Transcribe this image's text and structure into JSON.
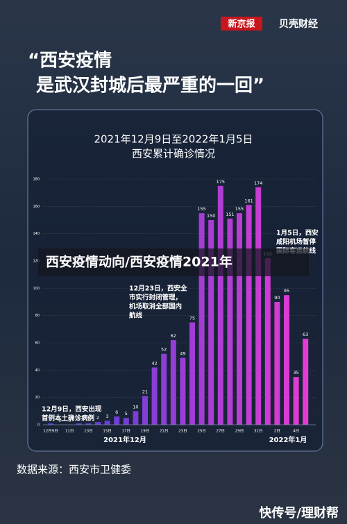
{
  "header": {
    "logo_left": "新京报",
    "logo_right": "贝壳财经"
  },
  "headline": [
    "“西安疫情",
    "是武汉封城后最严重的一回”"
  ],
  "chart_data": {
    "type": "bar",
    "title": "2021年12月9日至2022年1月5日",
    "subtitle": "西安累计确诊情况",
    "categories": [
      "12月9日",
      null,
      "11日",
      null,
      "13日",
      null,
      "15日",
      null,
      "17日",
      null,
      "19日",
      null,
      "21日",
      null,
      "23日",
      null,
      "25日",
      null,
      "27日",
      null,
      "29日",
      null,
      "31日",
      null,
      "2日",
      null,
      "4日",
      null
    ],
    "values": [
      1,
      0,
      0,
      1,
      1,
      2,
      3,
      6,
      5,
      10,
      21,
      42,
      52,
      62,
      49,
      75,
      155,
      150,
      175,
      151,
      155,
      161,
      174,
      122,
      90,
      95,
      35,
      63
    ],
    "gradient": [
      "#4a3fd8",
      "#e43cd2"
    ],
    "ylim": [
      0,
      180
    ],
    "yticks": [
      0,
      20,
      40,
      60,
      80,
      100,
      120,
      140,
      160,
      180
    ],
    "grid": true,
    "x_groups": [
      "2021年12月",
      "2022年1月"
    ],
    "annotations": [
      {
        "lines": [
          "12月9日，西安出现",
          "首例本土确诊病例"
        ]
      },
      {
        "lines": [
          "12月23日，西安全",
          "市实行封闭管理，",
          "机场取消全部国内",
          "航线"
        ]
      },
      {
        "lines": [
          "1月5日，西安",
          "咸阳机场暂停",
          "国际客运航线"
        ]
      }
    ]
  },
  "source": "数据来源：西安市卫健委",
  "banner": "西安疫情动向/西安疫情2021年",
  "watermark": "快传号/理财帮"
}
